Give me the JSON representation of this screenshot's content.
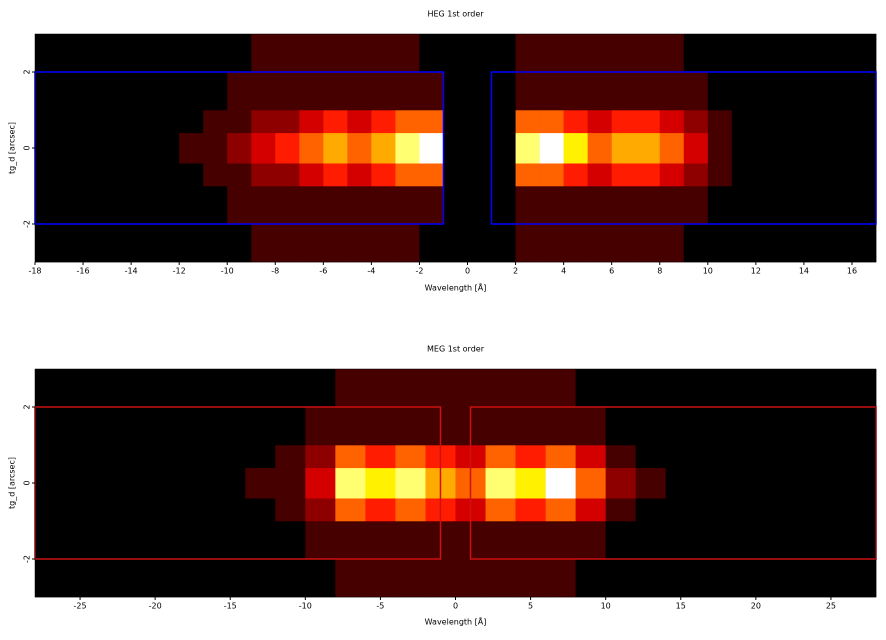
{
  "chart_data": [
    {
      "type": "heatmap",
      "title": "HEG 1st order",
      "xlabel": "Wavelength [Å]",
      "ylabel": "tg_d [arcsec]",
      "xlim": [
        -18,
        17
      ],
      "ylim": [
        -3,
        3
      ],
      "xticks": [
        -18,
        -16,
        -14,
        -12,
        -10,
        -8,
        -6,
        -4,
        -2,
        0,
        2,
        4,
        6,
        8,
        10,
        12,
        14,
        16
      ],
      "yticks": [
        -2,
        0,
        2
      ],
      "xbins": [
        -18,
        -17,
        -16,
        -15,
        -14,
        -13,
        -12,
        -11,
        -10,
        -9,
        -8,
        -7,
        -6,
        -5,
        -4,
        -3,
        -2,
        -1,
        0,
        1,
        2,
        3,
        4,
        5,
        6,
        7,
        8,
        9,
        10,
        11,
        12,
        13,
        14,
        15,
        16,
        17
      ],
      "ybins": [
        -3,
        -2,
        -1,
        -0.4,
        0.4,
        1,
        2,
        3
      ],
      "z": [
        [
          0,
          0,
          0,
          0,
          0,
          0,
          0,
          0,
          0,
          1,
          1,
          1,
          1,
          1,
          1,
          1,
          0,
          0,
          0,
          0,
          1,
          1,
          1,
          1,
          1,
          1,
          1,
          0,
          0,
          0,
          0,
          0,
          0,
          0,
          0
        ],
        [
          0,
          0,
          0,
          0,
          0,
          0,
          0,
          0,
          1,
          1,
          1,
          1,
          1,
          1,
          1,
          1,
          1,
          0,
          0,
          0,
          1,
          1,
          1,
          1,
          1,
          1,
          1,
          1,
          0,
          0,
          0,
          0,
          0,
          0,
          0
        ],
        [
          0,
          0,
          0,
          0,
          0,
          0,
          0,
          1,
          1,
          2,
          2,
          3,
          4,
          3,
          4,
          5,
          5,
          0,
          0,
          0,
          5,
          5,
          4,
          3,
          4,
          4,
          3,
          2,
          1,
          0,
          0,
          0,
          0,
          0,
          0
        ],
        [
          0,
          0,
          0,
          0,
          0,
          0,
          1,
          1,
          2,
          3,
          4,
          5,
          6,
          5,
          6,
          8,
          9,
          0,
          0,
          0,
          8,
          9,
          7,
          5,
          6,
          6,
          5,
          3,
          1,
          0,
          0,
          0,
          0,
          0,
          0
        ],
        [
          0,
          0,
          0,
          0,
          0,
          0,
          0,
          1,
          1,
          2,
          2,
          3,
          4,
          3,
          4,
          5,
          5,
          0,
          0,
          0,
          5,
          5,
          4,
          3,
          4,
          4,
          3,
          2,
          1,
          0,
          0,
          0,
          0,
          0,
          0
        ],
        [
          0,
          0,
          0,
          0,
          0,
          0,
          0,
          0,
          1,
          1,
          1,
          1,
          1,
          1,
          1,
          1,
          1,
          0,
          0,
          0,
          1,
          1,
          1,
          1,
          1,
          1,
          1,
          1,
          0,
          0,
          0,
          0,
          0,
          0,
          0
        ],
        [
          0,
          0,
          0,
          0,
          0,
          0,
          0,
          0,
          0,
          1,
          1,
          1,
          1,
          1,
          1,
          1,
          0,
          0,
          0,
          0,
          1,
          1,
          1,
          1,
          1,
          1,
          1,
          0,
          0,
          0,
          0,
          0,
          0,
          0,
          0
        ]
      ],
      "regions": [
        {
          "xlim": [
            -18,
            -1
          ],
          "ylim": [
            -2,
            2
          ]
        },
        {
          "xlim": [
            1,
            17
          ],
          "ylim": [
            -2,
            2
          ]
        }
      ],
      "region_color": "#0000ff"
    },
    {
      "type": "heatmap",
      "title": "MEG 1st order",
      "xlabel": "Wavelength [Å]",
      "ylabel": "tg_d [arcsec]",
      "xlim": [
        -28,
        28
      ],
      "ylim": [
        -3,
        3
      ],
      "xticks": [
        -25,
        -20,
        -15,
        -10,
        -5,
        0,
        5,
        10,
        15,
        20,
        25
      ],
      "yticks": [
        -2,
        0,
        2
      ],
      "xbins": [
        -28,
        -26,
        -24,
        -22,
        -20,
        -18,
        -16,
        -14,
        -12,
        -10,
        -8,
        -6,
        -4,
        -2,
        0,
        2,
        4,
        6,
        8,
        10,
        12,
        14,
        16,
        18,
        20,
        22,
        24,
        26,
        28
      ],
      "ybins": [
        -3,
        -2,
        -1,
        -0.4,
        0.4,
        1,
        2,
        3
      ],
      "z": [
        [
          0,
          0,
          0,
          0,
          0,
          0,
          0,
          0,
          0,
          0,
          1,
          1,
          1,
          1,
          1,
          1,
          1,
          1,
          0,
          0,
          0,
          0,
          0,
          0,
          0,
          0,
          0,
          0
        ],
        [
          0,
          0,
          0,
          0,
          0,
          0,
          0,
          0,
          0,
          1,
          1,
          1,
          1,
          1,
          1,
          1,
          1,
          1,
          1,
          0,
          0,
          0,
          0,
          0,
          0,
          0,
          0,
          0
        ],
        [
          0,
          0,
          0,
          0,
          0,
          0,
          0,
          0,
          1,
          2,
          5,
          4,
          5,
          4,
          3,
          5,
          4,
          5,
          3,
          1,
          0,
          0,
          0,
          0,
          0,
          0,
          0,
          0
        ],
        [
          0,
          0,
          0,
          0,
          0,
          0,
          0,
          1,
          1,
          3,
          8,
          7,
          8,
          6,
          5,
          8,
          7,
          9,
          5,
          2,
          1,
          0,
          0,
          0,
          0,
          0,
          0,
          0
        ],
        [
          0,
          0,
          0,
          0,
          0,
          0,
          0,
          0,
          1,
          2,
          5,
          4,
          5,
          4,
          3,
          5,
          4,
          5,
          3,
          1,
          0,
          0,
          0,
          0,
          0,
          0,
          0,
          0
        ],
        [
          0,
          0,
          0,
          0,
          0,
          0,
          0,
          0,
          0,
          1,
          1,
          1,
          1,
          1,
          1,
          1,
          1,
          1,
          1,
          0,
          0,
          0,
          0,
          0,
          0,
          0,
          0,
          0
        ],
        [
          0,
          0,
          0,
          0,
          0,
          0,
          0,
          0,
          0,
          0,
          1,
          1,
          1,
          1,
          1,
          1,
          1,
          1,
          0,
          0,
          0,
          0,
          0,
          0,
          0,
          0,
          0,
          0
        ]
      ],
      "regions": [
        {
          "xlim": [
            -28,
            -1
          ],
          "ylim": [
            -2,
            2
          ]
        },
        {
          "xlim": [
            1,
            28
          ],
          "ylim": [
            -2,
            2
          ]
        }
      ],
      "region_color": "#cc1111"
    }
  ]
}
